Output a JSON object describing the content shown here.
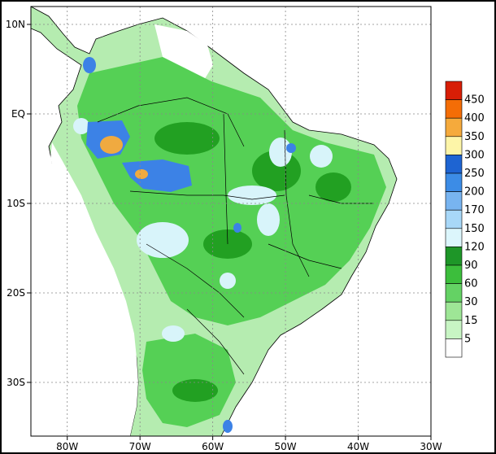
{
  "map": {
    "lon_range": [
      -85,
      -30
    ],
    "lat_range": [
      -36,
      12
    ],
    "lon_ticks": [
      {
        "value": -80,
        "label": "80W"
      },
      {
        "value": -70,
        "label": "70W"
      },
      {
        "value": -60,
        "label": "60W"
      },
      {
        "value": -50,
        "label": "50W"
      },
      {
        "value": -40,
        "label": "40W"
      },
      {
        "value": -30,
        "label": "30W"
      }
    ],
    "lat_ticks": [
      {
        "value": 10,
        "label": "10N"
      },
      {
        "value": 0,
        "label": "EQ"
      },
      {
        "value": -10,
        "label": "10S"
      },
      {
        "value": -20,
        "label": "20S"
      },
      {
        "value": -30,
        "label": "30S"
      }
    ],
    "grid": "dotted",
    "colors": {
      "land_low": "#b5ecb0",
      "mid_green": "#55d055",
      "dark_green": "#22a022",
      "light_blue": "#d8f4fa",
      "blue": "#3c82e6",
      "orange": "#f0aa40",
      "water": "#ffffff"
    }
  },
  "legend": {
    "placement": "right",
    "levels": [
      {
        "label": "450",
        "color": "#d81e06"
      },
      {
        "label": "400",
        "color": "#f46d06"
      },
      {
        "label": "350",
        "color": "#f5aa3c"
      },
      {
        "label": "300",
        "color": "#fdf5a8"
      },
      {
        "label": "250",
        "color": "#1e64d2"
      },
      {
        "label": "200",
        "color": "#3c8ce6"
      },
      {
        "label": "170",
        "color": "#78b4f0"
      },
      {
        "label": "150",
        "color": "#a8d8f8"
      },
      {
        "label": "120",
        "color": "#dcf6fc"
      },
      {
        "label": "90",
        "color": "#1e9628"
      },
      {
        "label": "60",
        "color": "#3cbe3c"
      },
      {
        "label": "30",
        "color": "#64d264"
      },
      {
        "label": "15",
        "color": "#9ee696"
      },
      {
        "label": "5",
        "color": "#c8f5c4"
      },
      {
        "label": "",
        "color": "#ffffff"
      }
    ]
  }
}
